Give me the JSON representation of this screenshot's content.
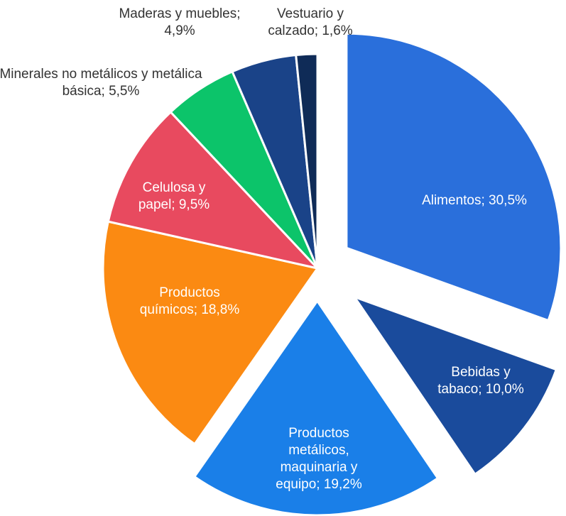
{
  "chart_data": {
    "type": "pie",
    "values": [
      30.5,
      10.0,
      19.2,
      18.8,
      9.5,
      5.5,
      4.9,
      1.6
    ],
    "value_labels": [
      "Alimentos; 30,5%",
      "Bebidas y tabaco; 10,0%",
      "Productos metálicos, maquinaria y equipo; 19,2%",
      "Productos químicos; 18,8%",
      "Celulosa y papel; 9,5%",
      "Minerales no metálicos y metálica básica; 5,5%",
      "Maderas y muebles; 4,9%",
      "Vestuario y calzado; 1,6%"
    ],
    "colors": [
      "#2a6fdb",
      "#1a4b9c",
      "#1a7fe8",
      "#fb8a12",
      "#e84a5f",
      "#0cc46a",
      "#1a4388",
      "#0f2b57"
    ]
  }
}
